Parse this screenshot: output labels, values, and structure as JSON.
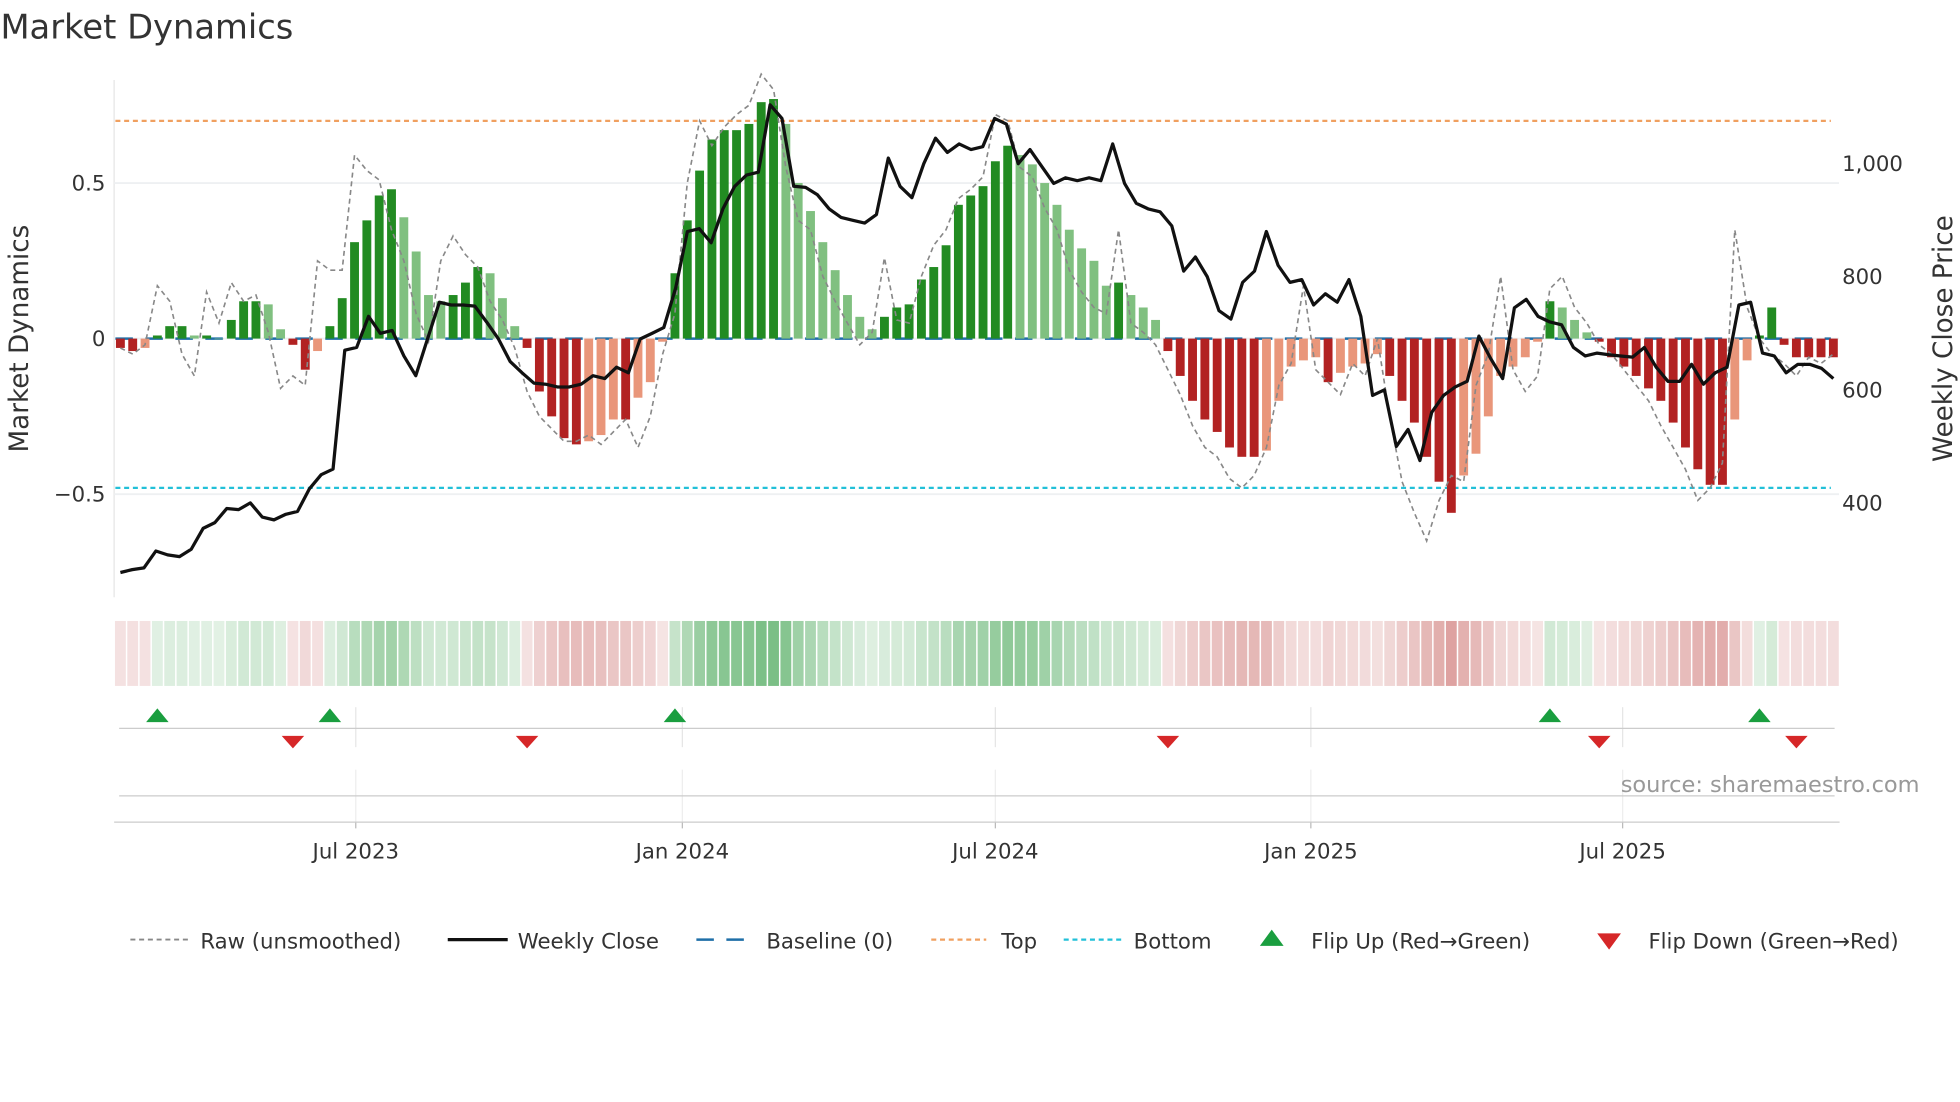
{
  "chart_data": {
    "type": "bar",
    "title": "Market Dynamics",
    "ylabel": "Market Dynamics",
    "y2label": "Weekly Close Price",
    "source": "source: sharemaestro.com",
    "ylim": [
      -0.78,
      0.85
    ],
    "y_ticks": [
      {
        "label": "0.5",
        "value": 0.5
      },
      {
        "label": "0",
        "value": 0
      },
      {
        "label": "−0.5",
        "value": -0.5
      }
    ],
    "y2_ticks": [
      {
        "label": "1,000",
        "value": 1000
      },
      {
        "label": "800",
        "value": 800
      },
      {
        "label": "600",
        "value": 600
      },
      {
        "label": "400",
        "value": 400
      }
    ],
    "x_ticks": [
      {
        "label": "Jul 2023",
        "week": 19.1
      },
      {
        "label": "Jan 2024",
        "week": 45.6
      },
      {
        "label": "Jul 2024",
        "week": 71.0
      },
      {
        "label": "Jan 2025",
        "week": 96.6
      },
      {
        "label": "Jul 2025",
        "week": 121.9
      }
    ],
    "top_level": 0.7,
    "bottom_level": -0.48,
    "baseline": 0,
    "momentum": [
      -0.03,
      -0.04,
      -0.03,
      0.01,
      0.04,
      0.04,
      0.01,
      0.01,
      0.0,
      0.06,
      0.12,
      0.12,
      0.11,
      0.03,
      -0.02,
      -0.1,
      -0.04,
      0.04,
      0.13,
      0.31,
      0.38,
      0.46,
      0.48,
      0.39,
      0.28,
      0.14,
      0.12,
      0.14,
      0.18,
      0.23,
      0.21,
      0.13,
      0.04,
      -0.03,
      -0.17,
      -0.25,
      -0.32,
      -0.34,
      -0.33,
      -0.31,
      -0.26,
      -0.26,
      -0.19,
      -0.14,
      -0.01,
      0.21,
      0.38,
      0.54,
      0.64,
      0.67,
      0.67,
      0.69,
      0.76,
      0.77,
      0.69,
      0.5,
      0.41,
      0.31,
      0.22,
      0.14,
      0.07,
      0.03,
      0.07,
      0.1,
      0.11,
      0.19,
      0.23,
      0.3,
      0.43,
      0.46,
      0.49,
      0.57,
      0.62,
      0.59,
      0.56,
      0.5,
      0.43,
      0.35,
      0.29,
      0.25,
      0.17,
      0.18,
      0.14,
      0.1,
      0.06,
      -0.04,
      -0.12,
      -0.2,
      -0.26,
      -0.3,
      -0.35,
      -0.38,
      -0.38,
      -0.36,
      -0.2,
      -0.09,
      -0.07,
      -0.06,
      -0.14,
      -0.11,
      -0.09,
      -0.08,
      -0.05,
      -0.12,
      -0.2,
      -0.27,
      -0.38,
      -0.46,
      -0.56,
      -0.44,
      -0.37,
      -0.25,
      -0.12,
      -0.09,
      -0.06,
      -0.01,
      0.12,
      0.1,
      0.06,
      0.02,
      -0.01,
      -0.06,
      -0.09,
      -0.12,
      -0.16,
      -0.2,
      -0.27,
      -0.35,
      -0.42,
      -0.47,
      -0.47,
      -0.26,
      -0.07,
      0.01,
      0.1,
      -0.02,
      -0.06,
      -0.06,
      -0.06,
      -0.06
    ],
    "raw": [
      -0.03,
      -0.05,
      -0.02,
      0.17,
      0.12,
      -0.05,
      -0.12,
      0.15,
      0.05,
      0.18,
      0.12,
      0.14,
      0.02,
      -0.16,
      -0.12,
      -0.15,
      0.25,
      0.22,
      0.22,
      0.59,
      0.54,
      0.51,
      0.35,
      0.25,
      0.08,
      -0.01,
      0.25,
      0.33,
      0.27,
      0.23,
      0.12,
      0.06,
      -0.03,
      -0.17,
      -0.25,
      -0.29,
      -0.33,
      -0.33,
      -0.31,
      -0.34,
      -0.3,
      -0.26,
      -0.35,
      -0.25,
      -0.05,
      0.08,
      0.5,
      0.7,
      0.62,
      0.68,
      0.72,
      0.75,
      0.85,
      0.8,
      0.55,
      0.38,
      0.35,
      0.2,
      0.12,
      0.05,
      -0.02,
      0.02,
      0.26,
      0.06,
      0.05,
      0.2,
      0.3,
      0.35,
      0.45,
      0.48,
      0.52,
      0.72,
      0.7,
      0.55,
      0.52,
      0.42,
      0.35,
      0.22,
      0.15,
      0.1,
      0.08,
      0.35,
      0.05,
      0.02,
      -0.02,
      -0.1,
      -0.18,
      -0.28,
      -0.35,
      -0.38,
      -0.45,
      -0.48,
      -0.44,
      -0.35,
      -0.15,
      -0.08,
      0.17,
      -0.1,
      -0.14,
      -0.18,
      -0.08,
      -0.12,
      0.0,
      -0.25,
      -0.46,
      -0.56,
      -0.65,
      -0.52,
      -0.44,
      -0.46,
      -0.15,
      -0.05,
      0.2,
      -0.1,
      -0.17,
      -0.12,
      0.16,
      0.2,
      0.1,
      0.05,
      -0.02,
      -0.05,
      -0.1,
      -0.15,
      -0.2,
      -0.28,
      -0.35,
      -0.42,
      -0.52,
      -0.48,
      -0.4,
      0.35,
      0.1,
      0.0,
      -0.05,
      -0.08,
      -0.12,
      -0.06,
      -0.08,
      -0.05
    ],
    "close": [
      277,
      282,
      285,
      315,
      308,
      305,
      318,
      355,
      365,
      390,
      388,
      400,
      375,
      370,
      380,
      385,
      425,
      450,
      460,
      670,
      675,
      730,
      700,
      705,
      660,
      625,
      690,
      755,
      750,
      750,
      748,
      720,
      690,
      650,
      630,
      612,
      610,
      605,
      605,
      610,
      625,
      620,
      640,
      630,
      690,
      700,
      710,
      780,
      880,
      885,
      860,
      920,
      960,
      980,
      985,
      1104,
      1080,
      960,
      958,
      945,
      920,
      905,
      900,
      895,
      910,
      1010,
      960,
      940,
      1000,
      1045,
      1020,
      1035,
      1025,
      1030,
      1080,
      1070,
      1000,
      1025,
      995,
      965,
      975,
      970,
      975,
      970,
      1035,
      965,
      930,
      920,
      915,
      890,
      810,
      835,
      800,
      740,
      725,
      790,
      810,
      880,
      820,
      790,
      795,
      750,
      770,
      755,
      795,
      730,
      590,
      600,
      500,
      530,
      475,
      560,
      590,
      605,
      615,
      695,
      655,
      620,
      745,
      760,
      730,
      720,
      715,
      675,
      660,
      665,
      662,
      660,
      658,
      675,
      640,
      615,
      615,
      645,
      610,
      630,
      640,
      750,
      755,
      665,
      660,
      630,
      645,
      645,
      638,
      620
    ],
    "flip_up_weeks": [
      3,
      17,
      45,
      116,
      133
    ],
    "flip_down_weeks": [
      14,
      33,
      85,
      120,
      136
    ],
    "colors": {
      "strong_up": "#228b22",
      "weak_up": "#80c080",
      "strong_down": "#b22222",
      "weak_down": "#e9967a",
      "close": "#111111",
      "raw": "#888888",
      "baseline": "#1f6fa8",
      "top": "#f0a060",
      "bottom": "#22c0d8",
      "flip_up": "#1a9e3f",
      "flip_down": "#d62728"
    },
    "legend": [
      {
        "label": "Raw (unsmoothed)",
        "key": "raw"
      },
      {
        "label": "Weekly Close",
        "key": "close"
      },
      {
        "label": "Baseline (0)",
        "key": "baseline"
      },
      {
        "label": "Top",
        "key": "top"
      },
      {
        "label": "Bottom",
        "key": "bottom"
      },
      {
        "label": "Flip Up (Red→Green)",
        "key": "flip_up"
      },
      {
        "label": "Flip Down (Green→Red)",
        "key": "flip_down"
      }
    ],
    "legend_position": "bottom"
  }
}
